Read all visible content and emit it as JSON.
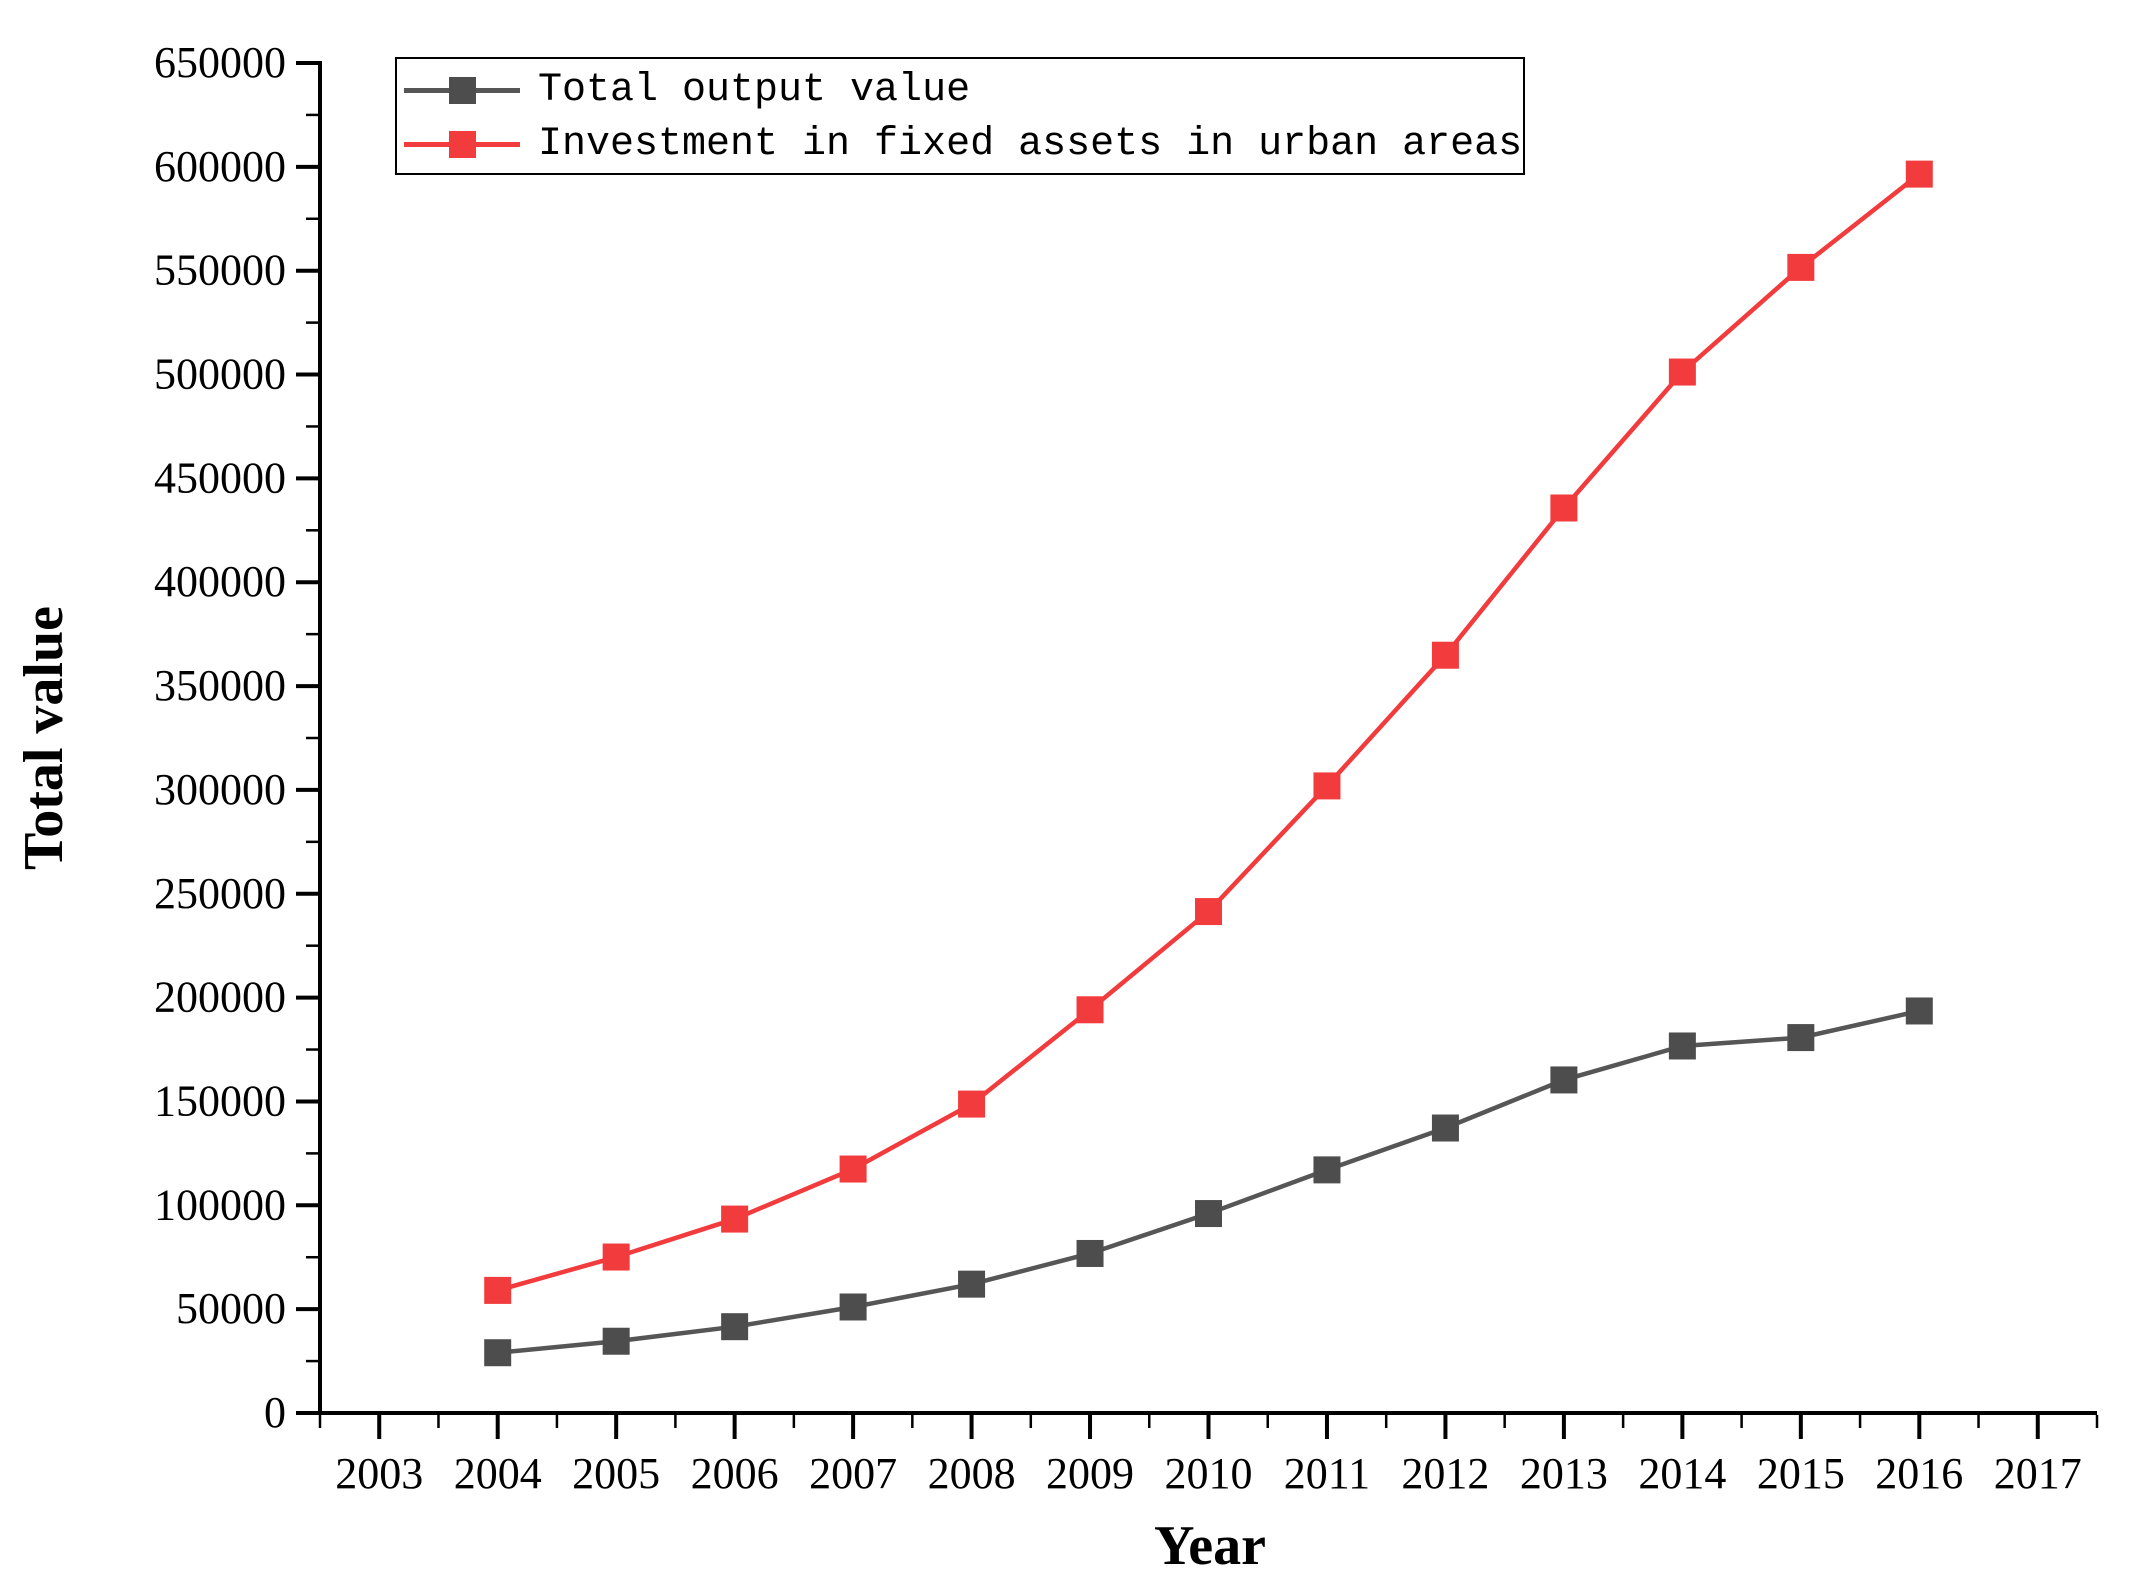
{
  "page": {
    "background": "#ffffff"
  },
  "chart_data": {
    "type": "line",
    "title": "",
    "xlabel": "Year",
    "ylabel": "Total value",
    "x_range": [
      2002.5,
      2017.5
    ],
    "ylim": [
      0,
      650000
    ],
    "y_tick_step": 50000,
    "y_minor_step": 25000,
    "x_tick_labels": [
      "2003",
      "2004",
      "2005",
      "2006",
      "2007",
      "2008",
      "2009",
      "2010",
      "2011",
      "2012",
      "2013",
      "2014",
      "2015",
      "2016",
      "2017"
    ],
    "x": [
      2004,
      2005,
      2006,
      2007,
      2008,
      2009,
      2010,
      2011,
      2012,
      2013,
      2014,
      2015,
      2016
    ],
    "series": [
      {
        "name": "Total output value",
        "color": "#4d4d4d",
        "line_color": "#565656",
        "values": [
          29021,
          34552,
          41557,
          51044,
          62037,
          76808,
          96031,
          117060,
          137218,
          160366,
          176713,
          180757,
          193567
        ]
      },
      {
        "name": "Investment in fixed assets in urban areas",
        "color": "#f23b3c",
        "line_color": "#f23b3c",
        "values": [
          59028,
          75095,
          93369,
          117464,
          148738,
          194139,
          241431,
          301933,
          364854,
          435747,
          501202,
          551590,
          596501
        ]
      }
    ],
    "grid": false,
    "legend_position": "top-left-inside",
    "marker": "square",
    "axis_color": "#000000"
  }
}
